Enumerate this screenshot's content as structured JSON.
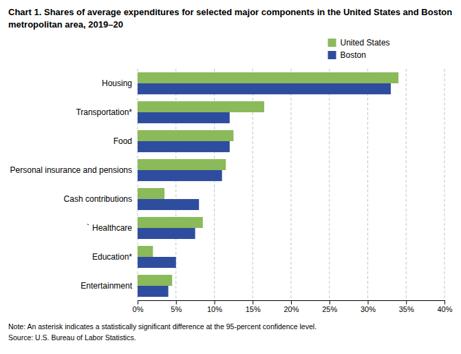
{
  "chart_data": {
    "type": "bar",
    "orientation": "horizontal",
    "title": "Chart 1. Shares of average expenditures for selected major components in the United States and Boston metropolitan area, 2019–20",
    "categories": [
      "Entertainment",
      "Education*",
      "Healthcare",
      "Cash contributions",
      "Personal insurance and pensions",
      "Food",
      "Transportation*",
      "Housing"
    ],
    "series": [
      {
        "name": "United States",
        "color": "#8aba5a",
        "values": [
          4.5,
          2.0,
          8.5,
          3.5,
          11.5,
          12.5,
          16.5,
          34.0
        ]
      },
      {
        "name": "Boston",
        "color": "#2e4d9e",
        "values": [
          4.0,
          5.0,
          7.5,
          8.0,
          11.0,
          12.0,
          12.0,
          33.0
        ]
      }
    ],
    "xlim": [
      0,
      40
    ],
    "xticks": [
      {
        "value": 0,
        "label": "0%"
      },
      {
        "value": 5,
        "label": "5%"
      },
      {
        "value": 10,
        "label": "10%"
      },
      {
        "value": 15,
        "label": "15%"
      },
      {
        "value": 20,
        "label": "20%"
      },
      {
        "value": 25,
        "label": "25%"
      },
      {
        "value": 30,
        "label": "30%"
      },
      {
        "value": 35,
        "label": "35%"
      },
      {
        "value": 40,
        "label": "40%"
      }
    ],
    "grid": true,
    "annotations": [
      {
        "text": "`",
        "category": "Healthcare"
      },
      {
        "text": "Note: An asterisk indicates a statistically significant difference at the 95-percent confidence level."
      },
      {
        "text": "Source: U.S. Bureau of Labor Statistics."
      }
    ]
  }
}
